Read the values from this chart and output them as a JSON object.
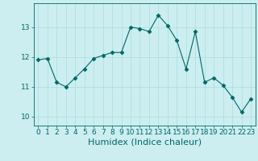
{
  "x": [
    0,
    1,
    2,
    3,
    4,
    5,
    6,
    7,
    8,
    9,
    10,
    11,
    12,
    13,
    14,
    15,
    16,
    17,
    18,
    19,
    20,
    21,
    22,
    23
  ],
  "y": [
    11.9,
    11.95,
    11.15,
    11.0,
    11.3,
    11.6,
    11.95,
    12.05,
    12.15,
    12.15,
    13.0,
    12.95,
    12.85,
    13.4,
    13.05,
    12.55,
    11.6,
    12.85,
    11.15,
    11.3,
    11.05,
    10.65,
    10.15,
    10.6
  ],
  "line_color": "#006666",
  "marker": "D",
  "markersize": 2.5,
  "linewidth": 0.8,
  "xlabel": "Humidex (Indice chaleur)",
  "xlabel_fontsize": 8,
  "ylim": [
    9.7,
    13.8
  ],
  "xlim": [
    -0.5,
    23.5
  ],
  "yticks": [
    10,
    11,
    12,
    13
  ],
  "xticks": [
    0,
    1,
    2,
    3,
    4,
    5,
    6,
    7,
    8,
    9,
    10,
    11,
    12,
    13,
    14,
    15,
    16,
    17,
    18,
    19,
    20,
    21,
    22,
    23
  ],
  "bg_color": "#cceef0",
  "grid_color": "#aadddd",
  "tick_fontsize": 6.5,
  "linestyle": "-"
}
